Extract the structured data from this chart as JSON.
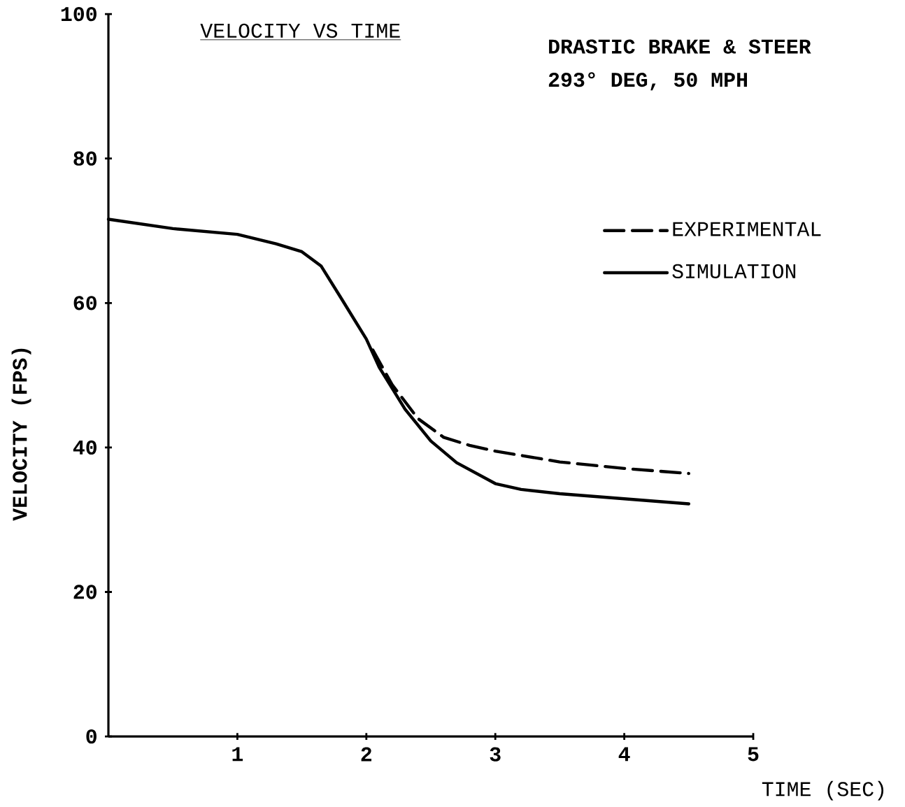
{
  "chart_data": {
    "type": "line",
    "title": "VELOCITY VS TIME",
    "annotations": [
      "DRASTIC BRAKE & STEER",
      "293° DEG,  50 MPH"
    ],
    "xlabel": "TIME (SEC)",
    "ylabel": "VELOCITY (FPS)",
    "xlim": [
      0,
      5
    ],
    "ylim": [
      0,
      100
    ],
    "xticks": [
      1,
      2,
      3,
      4,
      5
    ],
    "yticks": [
      0,
      20,
      40,
      60,
      80,
      100
    ],
    "grid": false,
    "legend": "top right",
    "series": [
      {
        "name": "EXPERIMENTAL",
        "color": "#000000",
        "line_style": "dashed",
        "x": [
          2.05,
          2.2,
          2.4,
          2.6,
          2.8,
          3.0,
          3.5,
          4.0,
          4.5
        ],
        "values": [
          53.5,
          48.7,
          44.0,
          41.4,
          40.3,
          39.5,
          38.0,
          37.1,
          36.4
        ]
      },
      {
        "name": "SIMULATION",
        "color": "#000000",
        "line_style": "solid",
        "x": [
          0,
          0.5,
          1.0,
          1.3,
          1.5,
          1.65,
          1.8,
          2.0,
          2.1,
          2.3,
          2.5,
          2.7,
          3.0,
          3.2,
          3.5,
          4.0,
          4.5
        ],
        "values": [
          71.6,
          70.3,
          69.5,
          68.2,
          67.1,
          65.1,
          60.8,
          55.0,
          51.1,
          45.3,
          40.9,
          37.9,
          35.0,
          34.2,
          33.6,
          32.9,
          32.2
        ]
      }
    ]
  }
}
